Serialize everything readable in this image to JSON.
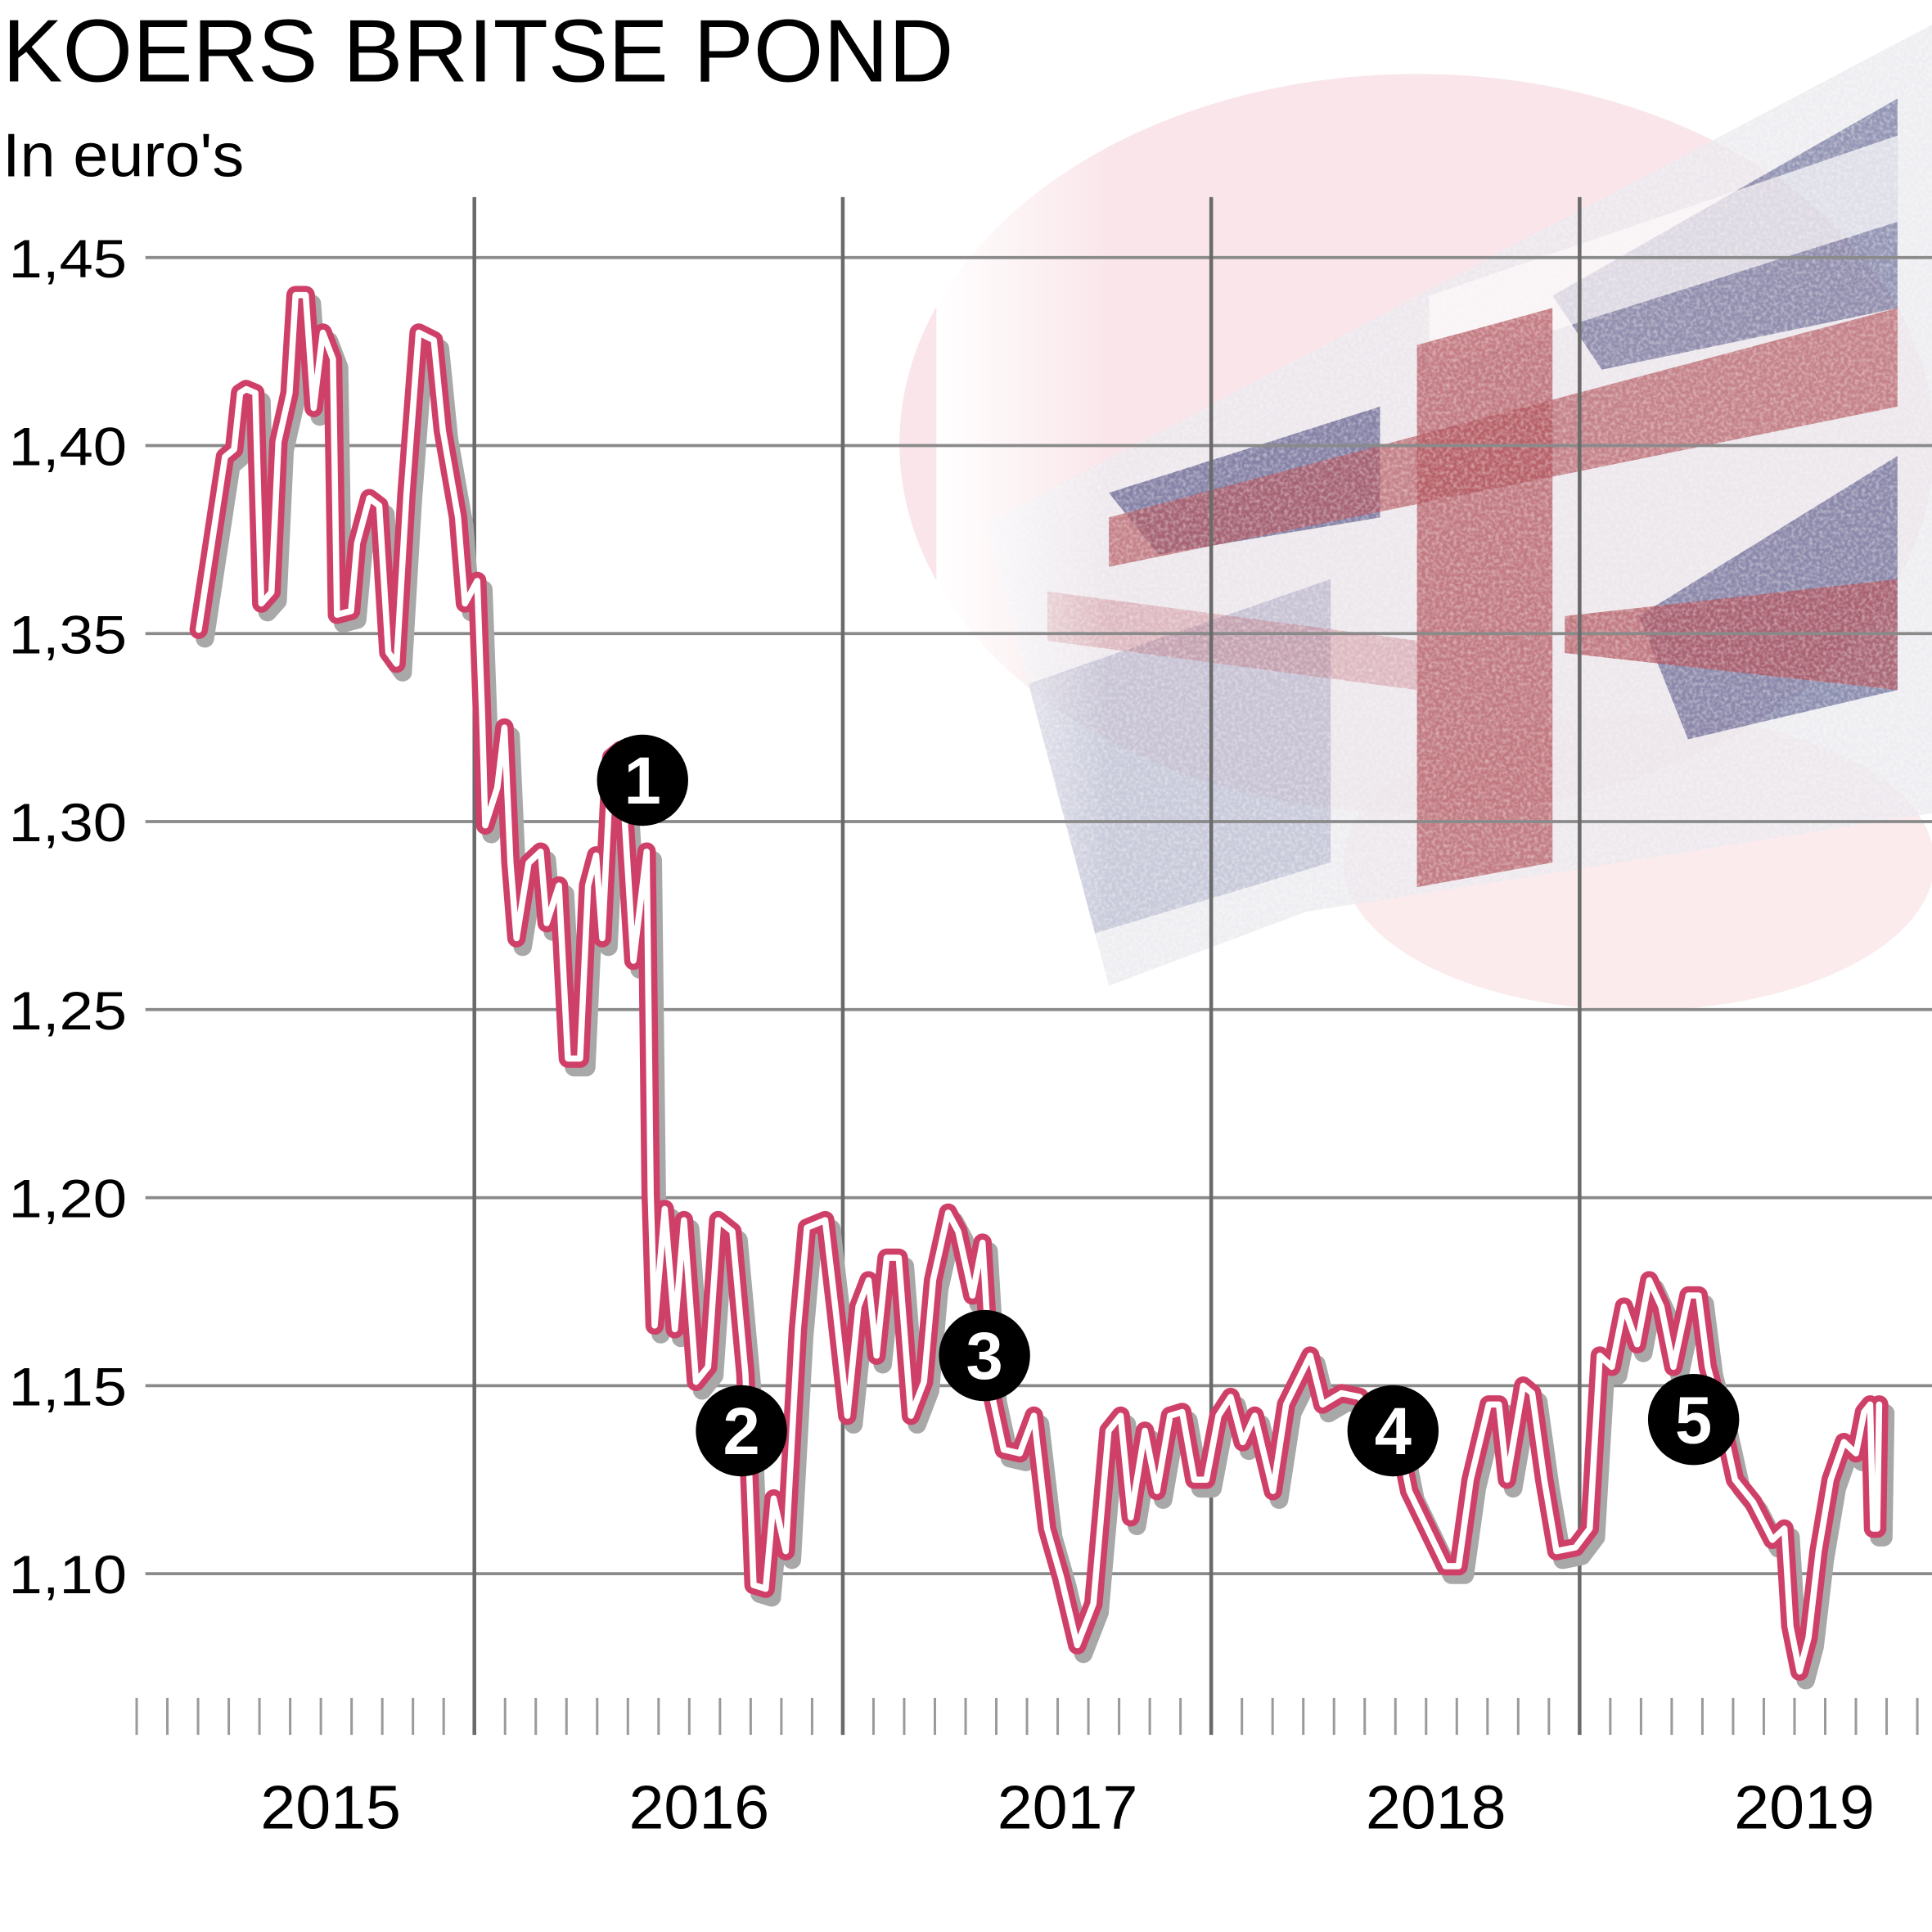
{
  "chart_data": {
    "type": "line",
    "title": "KOERS BRITSE POND",
    "subtitle": "In euro's",
    "xlabel": "",
    "ylabel": "",
    "ylim": [
      1.05,
      1.466
    ],
    "xlim": [
      "2015-01-01",
      "2019-12-31"
    ],
    "y_ticks": [
      "1,10",
      "1,15",
      "1,20",
      "1,25",
      "1,30",
      "1,35",
      "1,40",
      "1,45"
    ],
    "y_tick_values": [
      1.1,
      1.15,
      1.2,
      1.25,
      1.3,
      1.35,
      1.4,
      1.45
    ],
    "x_ticks": [
      "2015",
      "2016",
      "2017",
      "2018",
      "2019"
    ],
    "grid": true,
    "line_color": "#cf4068",
    "shadow_color": "#a8a8a8",
    "background_image": "faded-union-jack-flag",
    "markers": [
      {
        "label": "1",
        "date": "2016-06-16",
        "value": 1.311
      },
      {
        "label": "2",
        "date": "2016-09-22",
        "value": 1.138
      },
      {
        "label": "3",
        "date": "2017-05-21",
        "value": 1.158
      },
      {
        "label": "4",
        "date": "2018-06-30",
        "value": 1.138
      },
      {
        "label": "5",
        "date": "2019-04-24",
        "value": 1.141
      }
    ],
    "series": [
      {
        "dates": [
          "2015-04-03",
          "2015-04-29",
          "2015-05-08",
          "2015-05-14",
          "2015-05-20",
          "2015-05-29",
          "2015-06-04",
          "2015-06-14",
          "2015-06-21",
          "2015-07-02",
          "2015-07-08",
          "2015-07-18",
          "2015-07-26",
          "2015-08-04",
          "2015-08-14",
          "2015-08-18",
          "2015-09-01",
          "2015-09-07",
          "2015-09-19",
          "2015-09-29",
          "2015-10-08",
          "2015-10-16",
          "2015-10-26",
          "2015-11-07",
          "2015-11-22",
          "2015-12-01",
          "2015-12-16",
          "2015-12-23",
          "2016-01-04",
          "2016-01-09",
          "2016-01-12",
          "2016-01-24",
          "2016-01-31",
          "2016-02-06",
          "2016-02-12",
          "2016-02-24",
          "2016-03-07",
          "2016-03-13",
          "2016-03-25",
          "2016-04-03",
          "2016-04-15",
          "2016-04-23",
          "2016-05-01",
          "2016-05-07",
          "2016-05-16",
          "2016-05-25",
          "2016-06-07",
          "2016-06-20",
          "2016-06-24",
          "2016-06-28",
          "2016-07-08",
          "2016-07-18",
          "2016-07-27",
          "2016-08-08",
          "2016-08-20",
          "2016-08-30",
          "2016-09-13",
          "2016-09-26",
          "2016-10-04",
          "2016-10-16",
          "2016-10-24",
          "2016-11-05",
          "2016-11-17",
          "2016-11-26",
          "2016-12-14",
          "2016-12-24",
          "2017-01-05",
          "2017-01-16",
          "2017-01-26",
          "2017-02-03",
          "2017-02-13",
          "2017-02-25",
          "2017-03-09",
          "2017-03-22",
          "2017-03-31",
          "2017-04-15",
          "2017-04-25",
          "2017-05-09",
          "2017-05-19",
          "2017-05-28",
          "2017-06-09",
          "2017-06-25",
          "2017-07-09",
          "2017-07-22",
          "2017-08-05",
          "2017-08-21",
          "2017-09-06",
          "2017-09-21",
          "2017-10-03",
          "2017-10-13",
          "2017-10-27",
          "2017-11-08",
          "2017-11-21",
          "2017-12-03",
          "2017-12-15",
          "2017-12-27",
          "2018-01-08",
          "2018-01-20",
          "2018-02-01",
          "2018-02-13",
          "2018-03-03",
          "2018-03-16",
          "2018-04-09",
          "2018-04-21",
          "2018-05-10",
          "2018-05-28",
          "2018-06-13",
          "2018-07-04",
          "2018-07-16",
          "2018-08-03",
          "2018-08-21",
          "2018-09-03",
          "2018-09-15",
          "2018-10-03",
          "2018-10-13",
          "2018-10-21",
          "2018-11-06",
          "2018-11-15",
          "2018-11-27",
          "2018-12-09",
          "2018-12-28",
          "2019-01-11",
          "2019-01-21",
          "2019-02-02",
          "2019-02-14",
          "2019-02-27",
          "2019-03-11",
          "2019-03-23",
          "2019-04-04",
          "2019-04-19",
          "2019-04-29",
          "2019-05-08",
          "2019-05-21",
          "2019-06-04",
          "2019-06-22",
          "2019-07-11",
          "2019-07-23",
          "2019-07-29",
          "2019-08-07",
          "2019-08-16",
          "2019-08-26",
          "2019-09-07",
          "2019-09-20",
          "2019-10-02",
          "2019-10-10",
          "2019-10-16",
          "2019-10-19",
          "2019-10-23",
          "2019-10-25"
        ],
        "values": [
          1.351,
          1.397,
          1.399,
          1.414,
          1.415,
          1.414,
          1.358,
          1.361,
          1.401,
          1.414,
          1.44,
          1.44,
          1.41,
          1.43,
          1.423,
          1.355,
          1.356,
          1.374,
          1.386,
          1.384,
          1.345,
          1.342,
          1.387,
          1.43,
          1.428,
          1.404,
          1.381,
          1.358,
          1.364,
          1.328,
          1.299,
          1.309,
          1.325,
          1.289,
          1.269,
          1.289,
          1.292,
          1.273,
          1.283,
          1.237,
          1.237,
          1.283,
          1.291,
          1.269,
          1.317,
          1.319,
          1.263,
          1.292,
          1.201,
          1.166,
          1.197,
          1.165,
          1.194,
          1.151,
          1.155,
          1.194,
          1.191,
          1.153,
          1.097,
          1.096,
          1.12,
          1.106,
          1.165,
          1.192,
          1.194,
          1.171,
          1.142,
          1.171,
          1.178,
          1.158,
          1.184,
          1.184,
          1.142,
          1.151,
          1.178,
          1.196,
          1.191,
          1.174,
          1.188,
          1.148,
          1.133,
          1.132,
          1.142,
          1.112,
          1.099,
          1.081,
          1.092,
          1.138,
          1.142,
          1.115,
          1.138,
          1.122,
          1.142,
          1.143,
          1.125,
          1.125,
          1.142,
          1.147,
          1.135,
          1.142,
          1.122,
          1.145,
          1.158,
          1.145,
          1.148,
          1.147,
          1.14,
          1.138,
          1.122,
          1.112,
          1.102,
          1.102,
          1.125,
          1.145,
          1.145,
          1.125,
          1.15,
          1.148,
          1.125,
          1.106,
          1.107,
          1.112,
          1.158,
          1.155,
          1.171,
          1.161,
          1.178,
          1.171,
          1.155,
          1.174,
          1.174,
          1.155,
          1.142,
          1.125,
          1.119,
          1.109,
          1.112,
          1.086,
          1.074,
          1.083,
          1.106,
          1.125,
          1.135,
          1.132,
          1.143,
          1.145,
          1.112,
          1.112,
          1.145
        ]
      }
    ]
  }
}
